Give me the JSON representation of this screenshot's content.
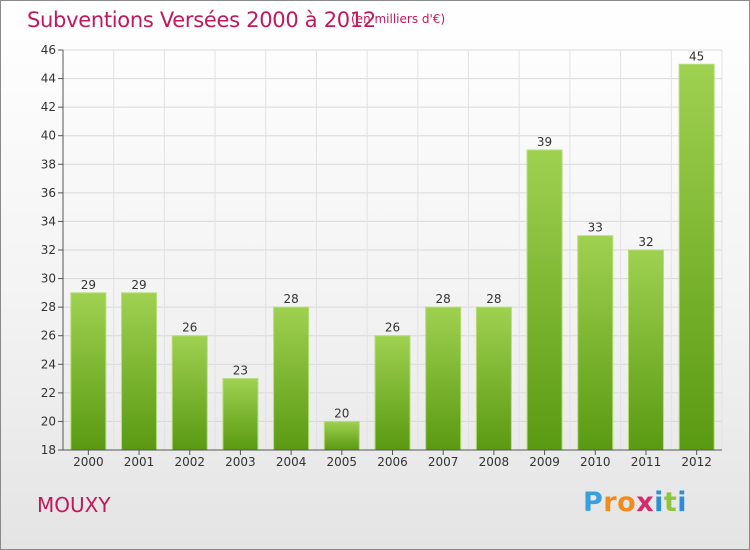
{
  "title": "Subventions Versées 2000 à 2012",
  "subtitle": "(en milliers d'€)",
  "commune": "MOUXY",
  "logo": {
    "letters": [
      "P",
      "r",
      "o",
      "x",
      "i",
      "t",
      "i"
    ],
    "colors": [
      "#3aa0dc",
      "#f08c1e",
      "#f08c1e",
      "#d62a6f",
      "#2a8fd6",
      "#8cc63e",
      "#2a8fd6"
    ]
  },
  "colors": {
    "bar_top": "#9fd150",
    "bar_bottom": "#5a9a12",
    "title": "#c2185b"
  },
  "chart_data": {
    "type": "bar",
    "title": "Subventions Versées 2000 à 2012",
    "subtitle": "(en milliers d'€)",
    "categories": [
      "2000",
      "2001",
      "2002",
      "2003",
      "2004",
      "2005",
      "2006",
      "2007",
      "2008",
      "2009",
      "2010",
      "2011",
      "2012"
    ],
    "values": [
      29,
      29,
      26,
      23,
      28,
      20,
      26,
      28,
      28,
      39,
      33,
      32,
      45
    ],
    "ylim": [
      18,
      46
    ],
    "yticks": [
      18,
      20,
      22,
      24,
      26,
      28,
      30,
      32,
      34,
      36,
      38,
      40,
      42,
      44,
      46
    ],
    "grid": true,
    "legend": "none"
  }
}
